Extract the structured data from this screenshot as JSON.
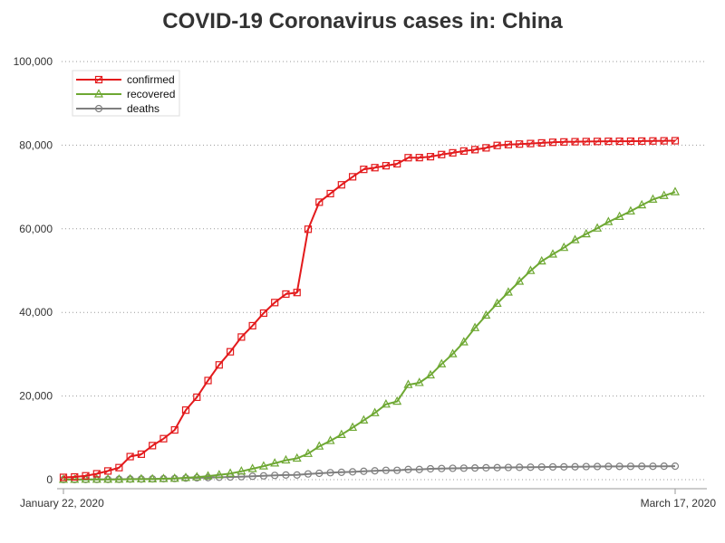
{
  "chart_data": {
    "type": "line",
    "title": "COVID-19 Coronavirus cases in: China",
    "xlabel": "",
    "ylabel": "",
    "x_tick_labels": [
      "January 22, 2020",
      "March 17, 2020"
    ],
    "ylim": [
      0,
      100000
    ],
    "y_ticks": [
      0,
      20000,
      40000,
      60000,
      80000,
      100000
    ],
    "y_tick_labels": [
      "0",
      "20,000",
      "40,000",
      "60,000",
      "80,000",
      "100,000"
    ],
    "grid": "horizontal dotted",
    "legend": "top-left",
    "series": [
      {
        "name": "confirmed",
        "color": "#e31a1c",
        "marker": "square",
        "values": [
          548,
          643,
          920,
          1406,
          2075,
          2877,
          5509,
          6087,
          8141,
          9802,
          11891,
          16630,
          19716,
          23707,
          27440,
          30587,
          34110,
          36814,
          39829,
          42354,
          44386,
          44759,
          59895,
          66358,
          68413,
          70513,
          72434,
          74211,
          74619,
          75077,
          75550,
          77001,
          77022,
          77241,
          77754,
          78166,
          78600,
          78928,
          79356,
          79932,
          80136,
          80261,
          80386,
          80537,
          80690,
          80770,
          80823,
          80860,
          80887,
          80921,
          80932,
          80945,
          80977,
          81003,
          81033,
          81058
        ]
      },
      {
        "name": "recovered",
        "color": "#6ea833",
        "marker": "triangle",
        "values": [
          28,
          30,
          36,
          39,
          49,
          58,
          101,
          120,
          135,
          214,
          275,
          463,
          614,
          843,
          1115,
          1476,
          1998,
          2595,
          3218,
          3917,
          4635,
          5079,
          6213,
          7973,
          9294,
          10748,
          12455,
          14199,
          15952,
          18002,
          18693,
          22687,
          23170,
          24990,
          27650,
          30053,
          32898,
          36291,
          39279,
          42118,
          44810,
          47404,
          49955,
          52240,
          53888,
          55478,
          57320,
          58735,
          60106,
          61644,
          62901,
          64196,
          65660,
          67017,
          67910,
          68798
        ]
      },
      {
        "name": "deaths",
        "color": "#7f7f7f",
        "marker": "circle",
        "values": [
          17,
          18,
          26,
          42,
          56,
          82,
          131,
          133,
          171,
          213,
          259,
          361,
          425,
          490,
          562,
          632,
          717,
          804,
          904,
          1011,
          1111,
          1116,
          1368,
          1520,
          1662,
          1765,
          1863,
          2002,
          2114,
          2236,
          2236,
          2441,
          2443,
          2593,
          2663,
          2715,
          2744,
          2788,
          2835,
          2870,
          2912,
          2945,
          2981,
          3013,
          3042,
          3062,
          3085,
          3120,
          3136,
          3158,
          3169,
          3176,
          3189,
          3199,
          3213,
          3226
        ]
      }
    ]
  }
}
